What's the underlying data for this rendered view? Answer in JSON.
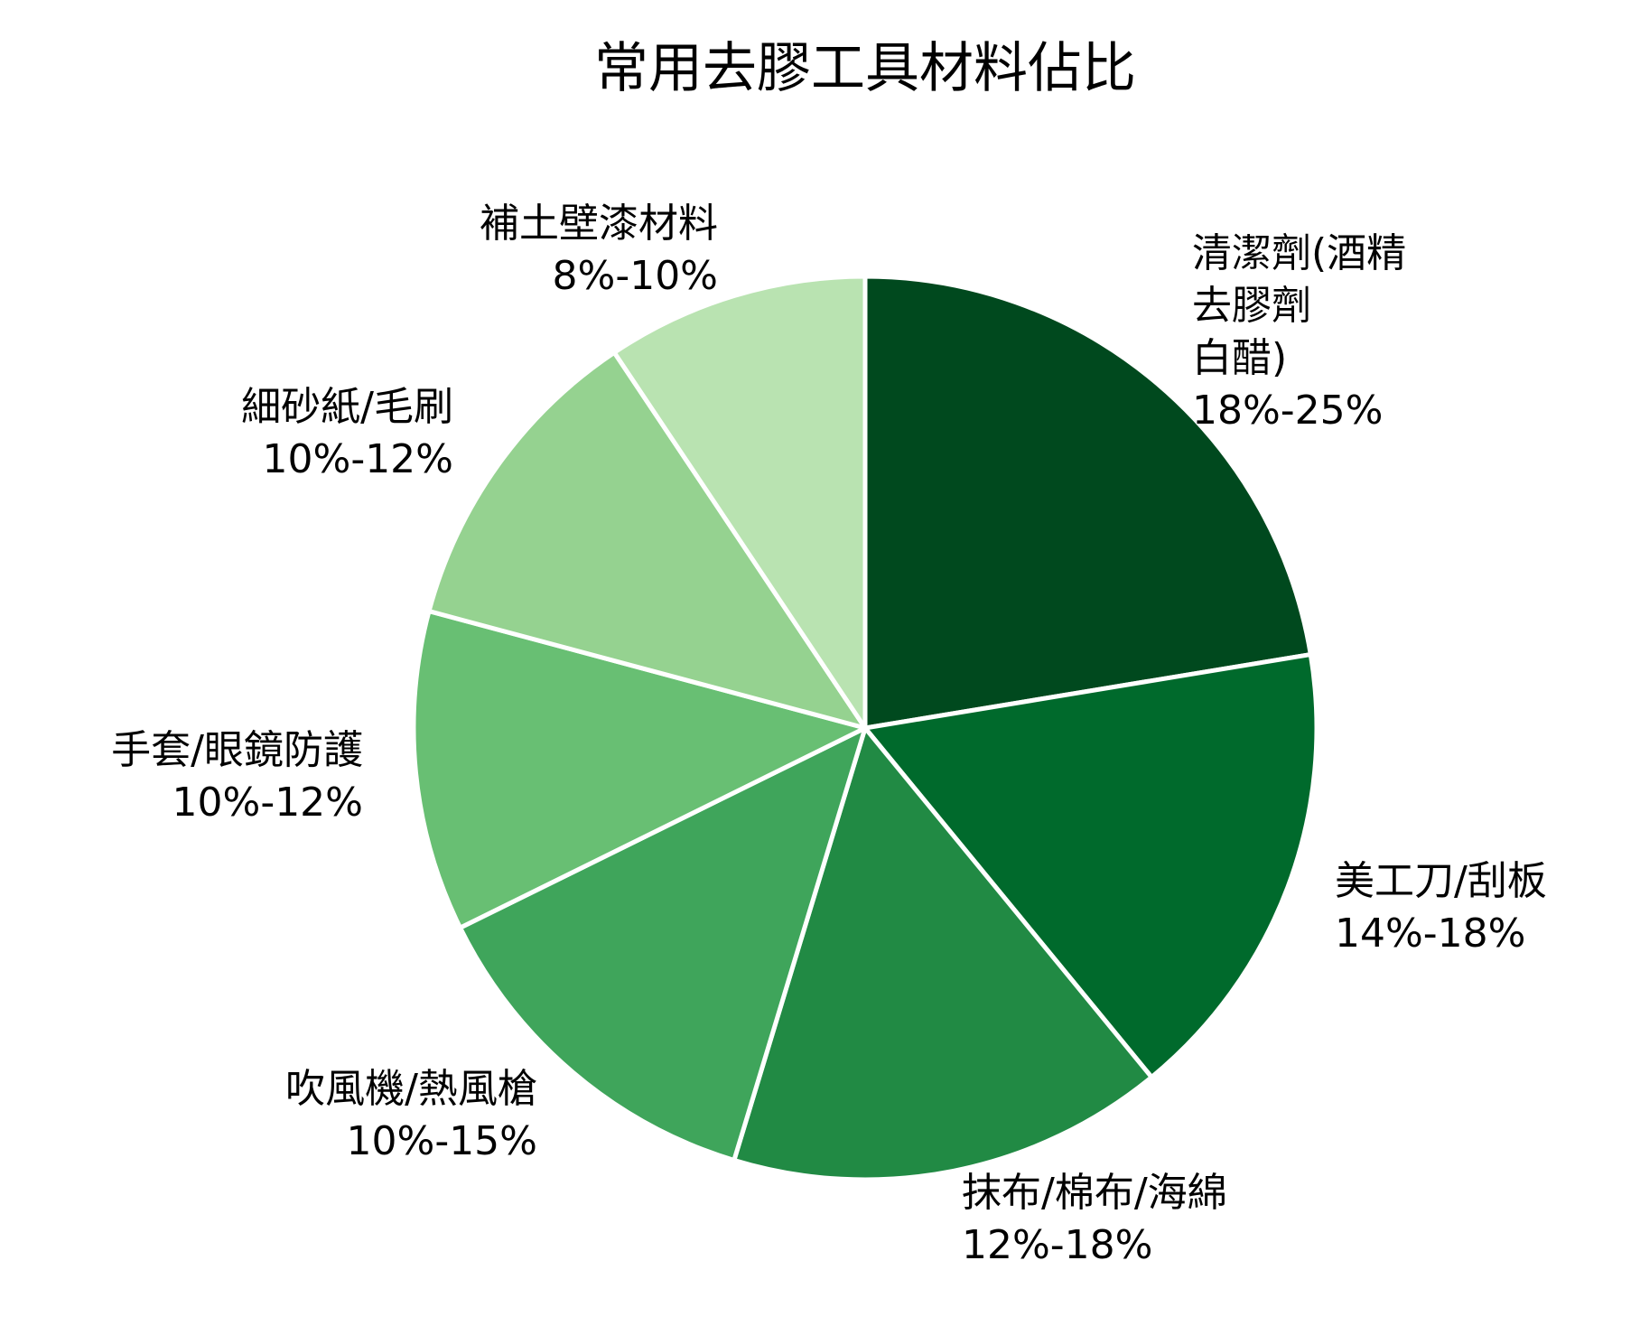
{
  "chart_data": {
    "type": "pie",
    "title": "常用去膠工具材料佔比",
    "start_angle_deg": 0,
    "direction": "clockwise",
    "slices": [
      {
        "label_lines": [
          "清潔劑(酒精",
          "去膠劑",
          "白醋)"
        ],
        "range": "18%-25%",
        "value": 21.5,
        "color": "#00491e"
      },
      {
        "label_lines": [
          "美工刀/刮板"
        ],
        "range": "14%-18%",
        "value": 16.0,
        "color": "#006a2c"
      },
      {
        "label_lines": [
          "抹布/棉布/海綿"
        ],
        "range": "12%-18%",
        "value": 15.0,
        "color": "#218a44"
      },
      {
        "label_lines": [
          "吹風機/熱風槍"
        ],
        "range": "10%-15%",
        "value": 12.5,
        "color": "#3fa55b"
      },
      {
        "label_lines": [
          "手套/眼鏡防護"
        ],
        "range": "10%-12%",
        "value": 11.0,
        "color": "#68bf73"
      },
      {
        "label_lines": [
          "細砂紙/毛刷"
        ],
        "range": "10%-12%",
        "value": 11.0,
        "color": "#95d290"
      },
      {
        "label_lines": [
          "補土壁漆材料"
        ],
        "range": "8%-10%",
        "value": 9.0,
        "color": "#b9e3b1"
      }
    ]
  }
}
